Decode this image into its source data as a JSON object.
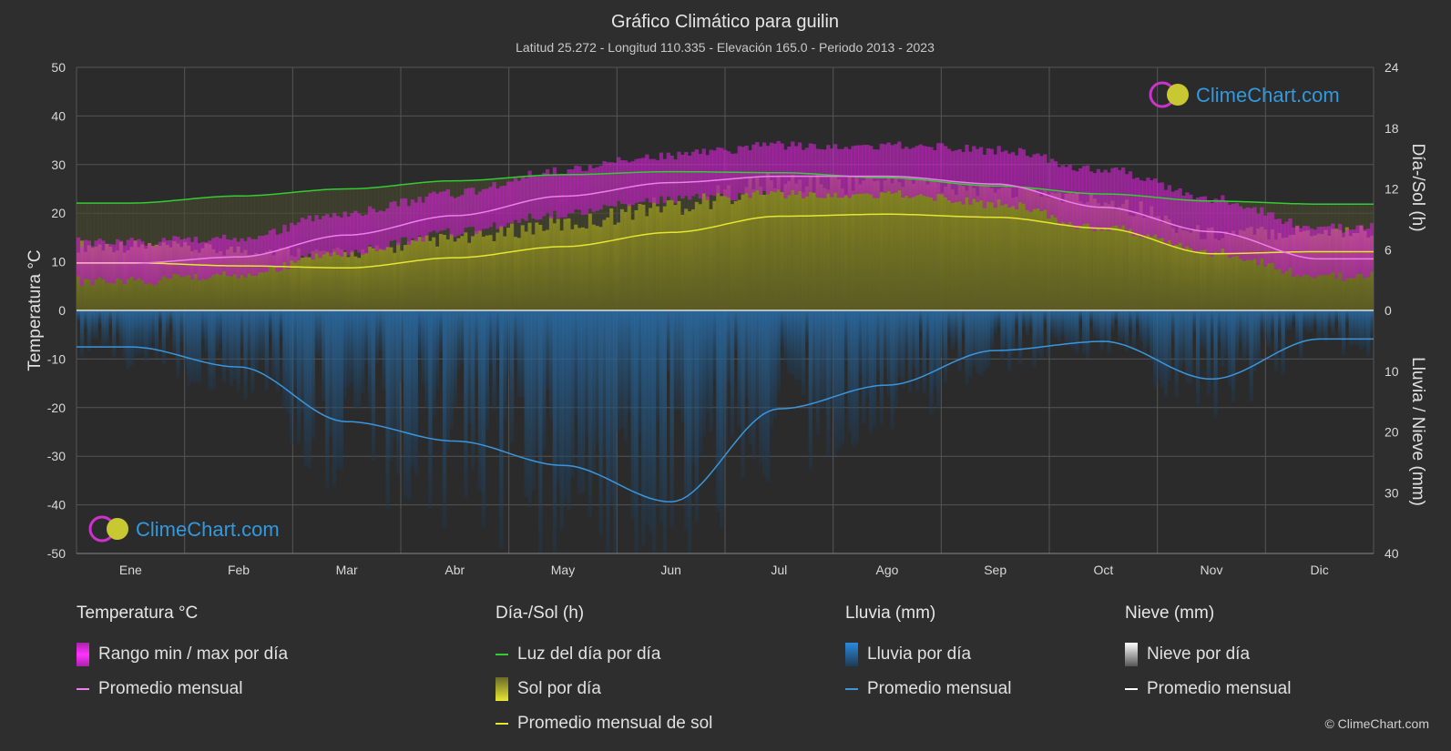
{
  "chart_data": {
    "type": "line",
    "title": "Gráfico Climático para guilin",
    "subtitle": "Latitud 25.272 - Longitud 110.335 - Elevación 165.0 - Periodo 2013 - 2023",
    "categories": [
      "Ene",
      "Feb",
      "Mar",
      "Abr",
      "May",
      "Jun",
      "Jul",
      "Ago",
      "Sep",
      "Oct",
      "Nov",
      "Dic"
    ],
    "left_axis": {
      "label": "Temperatura °C",
      "range": [
        -50,
        50
      ],
      "ticks": [
        50,
        40,
        30,
        20,
        10,
        0,
        -10,
        -20,
        -30,
        -40,
        -50
      ]
    },
    "right_axis_top": {
      "label": "Día-/Sol (h)",
      "range": [
        0,
        24
      ],
      "ticks": [
        24,
        18,
        12,
        6,
        0
      ]
    },
    "right_axis_bottom": {
      "label": "Lluvia / Nieve (mm)",
      "range": [
        0,
        40
      ],
      "ticks": [
        0,
        10,
        20,
        30,
        40
      ]
    },
    "grid": true,
    "series": [
      {
        "name": "Promedio mensual",
        "group": "Temperatura °C",
        "color": "#ee7eee",
        "values": [
          9.7,
          11.0,
          15.5,
          19.5,
          23.5,
          26.3,
          27.6,
          27.6,
          26.0,
          21.2,
          16.2,
          10.6
        ]
      },
      {
        "name": "Rango min / max por día",
        "group": "Temperatura °C",
        "color": "#dd22dd",
        "min": [
          7.0,
          8.5,
          13.0,
          17.0,
          21.0,
          24.0,
          25.0,
          25.0,
          23.0,
          18.0,
          13.0,
          8.0
        ],
        "max": [
          13.0,
          14.0,
          19.0,
          23.0,
          28.0,
          31.0,
          33.0,
          33.0,
          32.0,
          28.0,
          22.0,
          16.0
        ]
      },
      {
        "name": "Luz del día por día",
        "group": "Día-/Sol (h)",
        "color": "#33cc33",
        "values": [
          10.6,
          11.3,
          12.0,
          12.8,
          13.4,
          13.7,
          13.6,
          13.1,
          12.3,
          11.5,
          10.8,
          10.5
        ]
      },
      {
        "name": "Sol por día",
        "group": "Día-/Sol (h)",
        "color": "#c8c832",
        "values": [
          4.7,
          4.4,
          4.2,
          5.2,
          6.3,
          7.7,
          9.3,
          9.5,
          9.2,
          8.1,
          5.6,
          5.8
        ]
      },
      {
        "name": "Promedio mensual de sol",
        "group": "Día-/Sol (h)",
        "color": "#e6e632",
        "values": [
          4.7,
          4.4,
          4.2,
          5.2,
          6.3,
          7.7,
          9.3,
          9.5,
          9.2,
          8.1,
          5.6,
          5.8
        ]
      },
      {
        "name": "Lluvia por día",
        "group": "Lluvia (mm)",
        "color": "#2a7bbd",
        "values": [
          6.0,
          9.3,
          18.3,
          21.5,
          25.5,
          31.5,
          16.2,
          12.3,
          6.6,
          5.1,
          11.3,
          4.7
        ]
      },
      {
        "name": "Promedio mensual",
        "group": "Lluvia (mm)",
        "color": "#3a96dd",
        "values": [
          6.0,
          9.3,
          18.3,
          21.5,
          25.5,
          31.5,
          16.2,
          12.3,
          6.6,
          5.1,
          11.3,
          4.7
        ]
      },
      {
        "name": "Nieve por día",
        "group": "Nieve (mm)",
        "color": "#dddddd",
        "values": [
          0,
          0,
          0,
          0,
          0,
          0,
          0,
          0,
          0,
          0,
          0,
          0
        ]
      },
      {
        "name": "Promedio mensual",
        "group": "Nieve (mm)",
        "color": "#ffffff",
        "values": [
          0,
          0,
          0,
          0,
          0,
          0,
          0,
          0,
          0,
          0,
          0,
          0
        ]
      }
    ]
  },
  "brand": {
    "name": "ClimeChart.com",
    "copyright": "© ClimeChart.com"
  },
  "legend": {
    "temp": {
      "heading": "Temperatura °C",
      "range": "Rango min / max por día",
      "avg": "Promedio mensual"
    },
    "sun": {
      "heading": "Día-/Sol (h)",
      "daylight": "Luz del día por día",
      "sun": "Sol por día",
      "sun_avg": "Promedio mensual de sol"
    },
    "rain": {
      "heading": "Lluvia (mm)",
      "rain": "Lluvia por día",
      "avg": "Promedio mensual"
    },
    "snow": {
      "heading": "Nieve (mm)",
      "snow": "Nieve por día",
      "avg": "Promedio mensual"
    }
  },
  "colors": {
    "background": "#2e2e2e",
    "temp_range": "#dd22dd",
    "temp_avg": "#ee7eee",
    "daylight": "#33cc33",
    "sunshine": "#c8c832",
    "sun_avg": "#e6e632",
    "rain": "#2a7bbd",
    "rain_avg": "#3a96dd",
    "snow": "#dddddd",
    "snow_avg": "#ffffff",
    "brand_text": "#3399dd"
  }
}
